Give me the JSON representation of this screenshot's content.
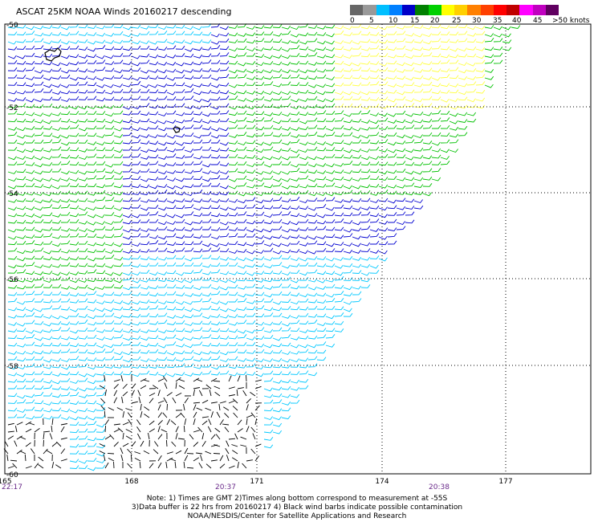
{
  "title": "ASCAT 25KM NOAA Winds 20160217 descending",
  "legend": {
    "colors": [
      "#666666",
      "#999999",
      "#00bfff",
      "#0080ff",
      "#0000c8",
      "#008000",
      "#00d000",
      "#ffff00",
      "#ffd000",
      "#ff8000",
      "#ff4000",
      "#ff0000",
      "#c00000",
      "#ff00ff",
      "#c000c0",
      "#600060"
    ],
    "tick_labels": [
      "0",
      "5",
      "10",
      "15",
      "20",
      "25",
      "30",
      "35",
      "40",
      "45"
    ],
    "units": ">50 knots"
  },
  "map": {
    "lon_labels": [
      "165",
      "168",
      "171",
      "174",
      "177"
    ],
    "lat_labels": [
      "-50",
      "-52",
      "-54",
      "-56",
      "-58",
      "-60"
    ],
    "time_labels": [
      "22:17",
      "20:37",
      "20:38"
    ],
    "barb_colors": {
      "black": "#000000",
      "cyan": "#00c8ff",
      "blue": "#0000d0",
      "green": "#00c000",
      "yellow": "#ffff40"
    }
  },
  "note": {
    "line1": "Note: 1) Times are GMT 2)Times along bottom correspond to measurement at -55S",
    "line2": "3)Data buffer is 22 hrs from 20160217 4) Black wind barbs indicate possible contamination",
    "line3": "NOAA/NESDIS/Center for Satellite Applications and Research"
  }
}
